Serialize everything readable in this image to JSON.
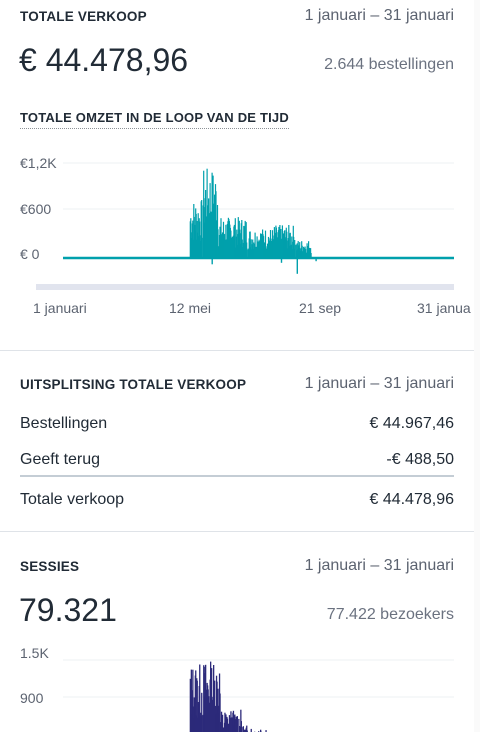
{
  "total_sales": {
    "title": "TOTALE VERKOOP",
    "date_range": "1 januari – 31 januari",
    "amount": "€ 44.478,96",
    "orders": "2.644 bestellingen",
    "chart_title": "TOTALE OMZET IN DE LOOP VAN DE TIJD",
    "accent_color": "#00a0ac"
  },
  "chart_data": [
    {
      "type": "bar",
      "title": "TOTALE OMZET IN DE LOOP VAN DE TIJD",
      "y_tick_labels": [
        "€1,2K",
        "€600",
        "€ 0"
      ],
      "x_tick_labels": [
        "1 januari",
        "12 mei",
        "21 sep",
        "31 janua"
      ],
      "ylim": [
        -250,
        1250
      ],
      "x_domain_days": 395,
      "grid": true,
      "bursts": [
        {
          "start_day": 128,
          "end_day": 140,
          "peak": 750
        },
        {
          "start_day": 141,
          "end_day": 156,
          "peak": 1140
        },
        {
          "start_day": 157,
          "end_day": 185,
          "peak": 520
        },
        {
          "start_day": 186,
          "end_day": 212,
          "peak": 380
        },
        {
          "start_day": 213,
          "end_day": 234,
          "peak": 420
        },
        {
          "start_day": 235,
          "end_day": 250,
          "peak": 230
        }
      ],
      "negatives": [
        {
          "day": 150,
          "value": -80
        },
        {
          "day": 220,
          "value": -60
        },
        {
          "day": 236,
          "value": -200
        },
        {
          "day": 255,
          "value": -40
        }
      ],
      "color": "#00a0ac"
    },
    {
      "type": "bar",
      "title": "SESSIES",
      "y_tick_labels": [
        "1.5K",
        "900"
      ],
      "ylim": [
        0,
        1600
      ],
      "bursts": [
        {
          "start_day": 128,
          "end_day": 140,
          "peak": 1450
        },
        {
          "start_day": 141,
          "end_day": 158,
          "peak": 1500
        },
        {
          "start_day": 159,
          "end_day": 180,
          "peak": 700
        },
        {
          "start_day": 181,
          "end_day": 205,
          "peak": 450
        }
      ],
      "color": "#2c2a7a"
    }
  ],
  "breakdown": {
    "title": "UITSPLITSING TOTALE VERKOOP",
    "date_range": "1 januari – 31 januari",
    "rows": [
      {
        "label": "Bestellingen",
        "value": "€ 44.967,46"
      },
      {
        "label": "Geeft terug",
        "value": "-€ 488,50"
      }
    ],
    "total": {
      "label": "Totale verkoop",
      "value": "€ 44.478,96"
    }
  },
  "sessions": {
    "title": "SESSIES",
    "date_range": "1 januari – 31 januari",
    "count": "79.321",
    "visitors": "77.422 bezoekers",
    "accent_color": "#2c2a7a"
  }
}
